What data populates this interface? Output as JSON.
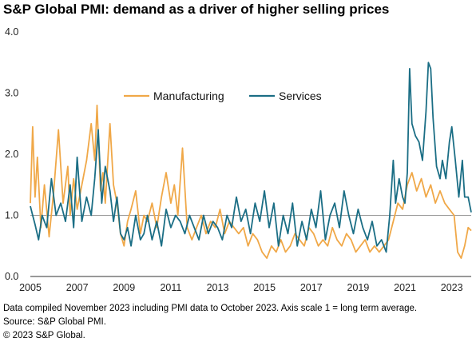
{
  "title": "S&P Global PMI: demand as a driver of higher selling prices",
  "footnotes": {
    "line1": "Data compiled November 2023 including PMI data to October 2023. Axis scale 1 = long term average.",
    "line2": "Source: S&P Global PMI.",
    "line3": "© 2023 S&P Global."
  },
  "chart_data": {
    "type": "line",
    "title": "S&P Global PMI: demand as a driver of higher selling prices",
    "xlabel": "",
    "ylabel": "",
    "xlim": [
      2005,
      2023.83
    ],
    "ylim": [
      0,
      4
    ],
    "yticks": [
      "0.0",
      "1.0",
      "2.0",
      "3.0",
      "4.0"
    ],
    "xticks": [
      "2005",
      "2007",
      "2009",
      "2011",
      "2013",
      "2015",
      "2017",
      "2019",
      "2021",
      "2023"
    ],
    "reference_line": 1.0,
    "grid": false,
    "legend_position": "top-center",
    "colors": {
      "Manufacturing": "#f0a848",
      "Services": "#1b6e85",
      "reference": "#999999"
    },
    "series": [
      {
        "name": "Manufacturing",
        "x": [
          2005.0,
          2005.1,
          2005.2,
          2005.3,
          2005.45,
          2005.6,
          2005.8,
          2006.0,
          2006.2,
          2006.4,
          2006.6,
          2006.7,
          2006.85,
          2007.0,
          2007.2,
          2007.4,
          2007.6,
          2007.75,
          2007.85,
          2008.0,
          2008.1,
          2008.2,
          2008.4,
          2008.55,
          2008.7,
          2008.85,
          2009.0,
          2009.15,
          2009.3,
          2009.5,
          2009.7,
          2009.85,
          2010.0,
          2010.2,
          2010.4,
          2010.6,
          2010.8,
          2011.0,
          2011.15,
          2011.3,
          2011.5,
          2011.7,
          2011.9,
          2012.1,
          2012.3,
          2012.5,
          2012.7,
          2012.9,
          2013.1,
          2013.3,
          2013.5,
          2013.7,
          2013.9,
          2014.1,
          2014.3,
          2014.5,
          2014.7,
          2014.9,
          2015.1,
          2015.3,
          2015.5,
          2015.7,
          2015.9,
          2016.1,
          2016.3,
          2016.5,
          2016.7,
          2016.9,
          2017.1,
          2017.3,
          2017.5,
          2017.7,
          2017.9,
          2018.1,
          2018.3,
          2018.5,
          2018.7,
          2018.9,
          2019.1,
          2019.3,
          2019.5,
          2019.7,
          2019.9,
          2020.1,
          2020.3,
          2020.5,
          2020.7,
          2020.9,
          2021.1,
          2021.3,
          2021.5,
          2021.7,
          2021.9,
          2022.1,
          2022.3,
          2022.5,
          2022.7,
          2022.9,
          2023.1,
          2023.25,
          2023.4,
          2023.55,
          2023.7,
          2023.83
        ],
        "values": [
          1.2,
          2.45,
          1.3,
          1.95,
          0.8,
          1.5,
          0.65,
          1.4,
          2.4,
          1.2,
          1.8,
          1.0,
          1.6,
          1.1,
          1.5,
          1.9,
          2.5,
          1.9,
          2.8,
          1.4,
          1.7,
          1.2,
          2.5,
          1.5,
          1.2,
          0.7,
          0.5,
          0.9,
          1.1,
          1.4,
          0.7,
          1.0,
          0.9,
          1.2,
          0.8,
          1.3,
          1.7,
          1.2,
          1.5,
          1.0,
          2.1,
          0.8,
          0.6,
          0.8,
          1.0,
          0.7,
          0.9,
          0.8,
          1.1,
          0.7,
          0.9,
          0.8,
          0.7,
          0.8,
          0.5,
          0.7,
          0.6,
          0.4,
          0.3,
          0.5,
          0.4,
          0.6,
          0.4,
          0.5,
          0.7,
          0.6,
          0.5,
          0.8,
          0.7,
          0.5,
          0.6,
          0.5,
          0.8,
          0.6,
          0.5,
          0.7,
          0.6,
          0.4,
          0.5,
          0.6,
          0.4,
          0.5,
          0.4,
          0.5,
          0.6,
          0.9,
          1.2,
          1.1,
          1.5,
          1.7,
          1.4,
          1.6,
          1.3,
          1.5,
          1.2,
          1.4,
          1.2,
          1.1,
          1.0,
          0.4,
          0.3,
          0.5,
          0.8,
          0.75
        ]
      },
      {
        "name": "Services",
        "x": [
          2005.0,
          2005.1,
          2005.2,
          2005.35,
          2005.5,
          2005.7,
          2005.9,
          2006.1,
          2006.3,
          2006.5,
          2006.7,
          2006.85,
          2007.0,
          2007.2,
          2007.4,
          2007.6,
          2007.75,
          2007.9,
          2008.05,
          2008.2,
          2008.4,
          2008.55,
          2008.7,
          2008.85,
          2009.0,
          2009.15,
          2009.3,
          2009.5,
          2009.7,
          2009.85,
          2010.0,
          2010.2,
          2010.4,
          2010.6,
          2010.8,
          2011.0,
          2011.2,
          2011.4,
          2011.6,
          2011.8,
          2012.0,
          2012.2,
          2012.4,
          2012.6,
          2012.8,
          2013.0,
          2013.2,
          2013.4,
          2013.6,
          2013.8,
          2014.0,
          2014.2,
          2014.4,
          2014.6,
          2014.8,
          2015.0,
          2015.2,
          2015.4,
          2015.6,
          2015.8,
          2016.0,
          2016.2,
          2016.4,
          2016.6,
          2016.8,
          2017.0,
          2017.2,
          2017.4,
          2017.6,
          2017.8,
          2018.0,
          2018.2,
          2018.4,
          2018.6,
          2018.8,
          2019.0,
          2019.2,
          2019.4,
          2019.6,
          2019.8,
          2020.0,
          2020.2,
          2020.35,
          2020.5,
          2020.6,
          2020.75,
          2020.9,
          2021.0,
          2021.1,
          2021.2,
          2021.3,
          2021.45,
          2021.6,
          2021.75,
          2021.9,
          2022.0,
          2022.1,
          2022.2,
          2022.35,
          2022.5,
          2022.6,
          2022.75,
          2022.9,
          2023.0,
          2023.15,
          2023.3,
          2023.45,
          2023.55,
          2023.7,
          2023.83
        ],
        "values": [
          1.15,
          1.0,
          0.85,
          0.6,
          1.0,
          0.8,
          1.6,
          1.0,
          1.2,
          0.9,
          1.5,
          0.8,
          1.95,
          0.9,
          1.3,
          1.0,
          1.6,
          2.4,
          1.2,
          1.8,
          1.4,
          0.9,
          1.3,
          0.7,
          0.6,
          0.8,
          0.5,
          1.0,
          0.6,
          0.7,
          1.0,
          0.6,
          0.9,
          0.5,
          1.1,
          0.8,
          1.0,
          0.9,
          0.7,
          1.0,
          0.8,
          0.6,
          1.0,
          0.7,
          0.9,
          0.8,
          0.6,
          1.0,
          0.8,
          1.3,
          0.9,
          1.1,
          0.7,
          1.2,
          0.9,
          1.4,
          0.8,
          1.2,
          0.5,
          1.0,
          0.7,
          1.2,
          0.5,
          0.9,
          0.6,
          1.1,
          0.8,
          1.4,
          0.6,
          1.0,
          1.2,
          0.8,
          1.4,
          1.0,
          0.7,
          1.1,
          0.8,
          0.6,
          0.9,
          0.5,
          0.6,
          0.4,
          1.0,
          1.9,
          1.2,
          1.6,
          1.3,
          1.2,
          1.7,
          3.4,
          2.5,
          2.3,
          2.2,
          1.9,
          2.7,
          3.5,
          3.4,
          2.6,
          1.8,
          1.6,
          1.9,
          1.6,
          2.2,
          2.45,
          1.9,
          1.3,
          1.9,
          1.3,
          1.3,
          1.05
        ]
      }
    ]
  }
}
